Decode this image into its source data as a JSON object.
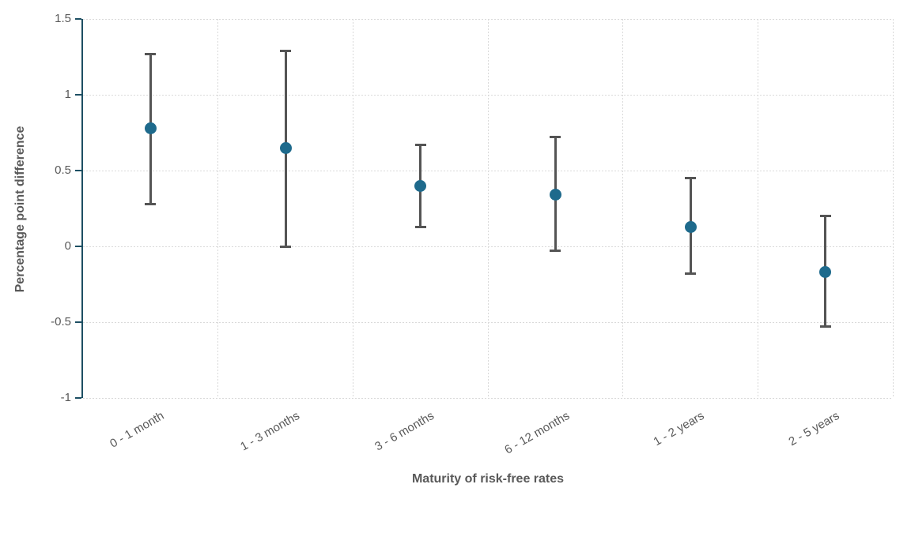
{
  "chart_data": {
    "type": "scatter",
    "subtype": "point-estimates-with-error-bars",
    "title": "",
    "xlabel": "Maturity of risk-free rates",
    "ylabel": "Percentage point difference",
    "categories": [
      "0 - 1 month",
      "1 - 3 months",
      "3 - 6 months",
      "6 - 12 months",
      "1 - 2 years",
      "2 - 5 years"
    ],
    "series": [
      {
        "name": "Percentage point difference",
        "values": [
          0.78,
          0.65,
          0.4,
          0.34,
          0.13,
          -0.17
        ],
        "ci_low": [
          0.28,
          0.0,
          0.13,
          -0.03,
          -0.18,
          -0.53
        ],
        "ci_high": [
          1.27,
          1.29,
          0.67,
          0.72,
          0.45,
          0.2
        ]
      }
    ],
    "ylim": [
      -1,
      1.5
    ],
    "yticks": [
      1.5,
      1,
      0.5,
      0,
      -0.5,
      -1
    ],
    "ytick_labels": [
      "1.5",
      "1",
      "0.5",
      "0",
      "-0.5",
      "-1"
    ],
    "grid": true,
    "legend": false,
    "colors": {
      "point": "#1E6A8C",
      "error_bar": "#545454",
      "axis_line": "#1D4F63",
      "gridline": "#D9D9D9",
      "tick_label": "#595959",
      "axis_title": "#595959",
      "background": "#FFFFFF"
    }
  }
}
